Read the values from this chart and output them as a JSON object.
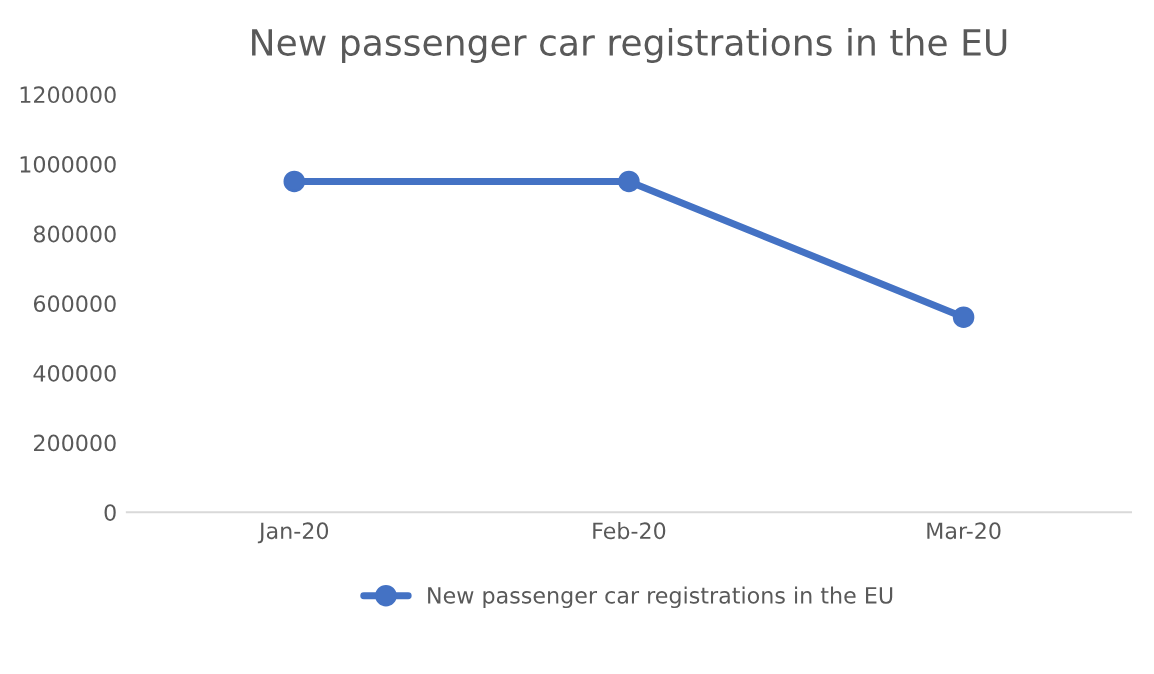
{
  "chart_data": {
    "type": "line",
    "title": "New passenger car registrations in the EU",
    "categories": [
      "Jan-20",
      "Feb-20",
      "Mar-20"
    ],
    "series": [
      {
        "name": "New passenger car registrations in the EU",
        "color": "#4472c4",
        "values": [
          950000,
          950000,
          560000
        ]
      }
    ],
    "ylim": [
      0,
      1200000
    ],
    "yticks": [
      0,
      200000,
      400000,
      600000,
      800000,
      1000000,
      1200000
    ],
    "grid": false,
    "legend": "bottom",
    "marker": "circle",
    "line_style": "solid"
  }
}
